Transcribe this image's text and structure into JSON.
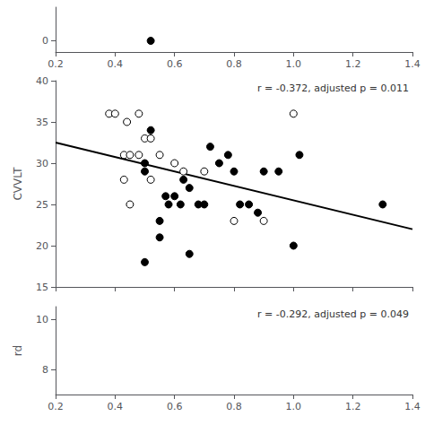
{
  "chart_data": [
    {
      "type": "scatter",
      "xlim": [
        0.2,
        1.4
      ],
      "xticks": [
        0.2,
        0.4,
        0.6,
        0.8,
        {
          "value": 1.0,
          "label": "1.0"
        },
        1.2,
        1.4
      ],
      "ylim": [
        -0.5,
        1.5
      ],
      "yticks": [
        0
      ],
      "series": [
        {
          "x": [
            0.52
          ],
          "values": [
            0.0
          ],
          "color": "#000000",
          "marker": "circle"
        }
      ]
    },
    {
      "type": "scatter",
      "ylabel": "CVVLT",
      "annotation": "r = -0.372, adjusted p = 0.011",
      "xlim": [
        0.2,
        1.4
      ],
      "xticks": [
        0.2,
        0.4,
        0.6,
        0.8,
        {
          "value": 1.0,
          "label": "1.0"
        },
        1.2,
        1.4
      ],
      "ylim": [
        15,
        40
      ],
      "yticks": [
        15,
        20,
        25,
        30,
        35,
        40
      ],
      "tick_labels": "y",
      "series": [
        {
          "x": [
            0.38,
            0.4,
            0.44,
            0.48,
            0.43,
            0.45,
            0.48,
            0.5,
            0.52,
            0.43,
            0.52,
            0.55,
            0.6,
            0.63,
            0.7,
            0.8,
            0.9,
            1.0,
            0.45
          ],
          "values": [
            36.0,
            36.0,
            35.0,
            36.0,
            31.0,
            31.0,
            31.0,
            33.0,
            33.0,
            28.0,
            28.0,
            31.0,
            30.0,
            29.0,
            29.0,
            23.0,
            23.0,
            36.0,
            25.0
          ],
          "color": "#ffffff",
          "marker": "circle"
        },
        {
          "x": [
            0.52,
            0.5,
            0.5,
            0.57,
            0.6,
            0.58,
            0.62,
            0.55,
            0.55,
            0.5,
            0.65,
            0.68,
            0.7,
            0.72,
            0.75,
            0.78,
            0.8,
            0.82,
            0.85,
            0.88,
            0.65,
            1.0,
            0.9,
            0.95,
            1.02,
            1.3,
            0.63
          ],
          "values": [
            34.0,
            30.0,
            29.0,
            26.0,
            26.0,
            25.0,
            25.0,
            23.0,
            21.0,
            18.0,
            27.0,
            25.0,
            25.0,
            32.0,
            30.0,
            31.0,
            29.0,
            25.0,
            25.0,
            24.0,
            19.0,
            20.0,
            29.0,
            29.0,
            31.0,
            25.0,
            28.0
          ],
          "color": "#000000",
          "marker": "circle"
        },
        {
          "type": "line",
          "x": [
            0.2,
            1.4
          ],
          "values": [
            32.5,
            22.0
          ],
          "color": "#000000",
          "line_style": "solid"
        }
      ]
    },
    {
      "type": "scatter",
      "ylabel": "rd",
      "annotation": "r = -0.292, adjusted p = 0.049",
      "xlim": [
        0.2,
        1.4
      ],
      "xticks": [
        0.2,
        0.4,
        0.6,
        0.8,
        {
          "value": 1.0,
          "label": "1.0"
        },
        1.2,
        1.4
      ],
      "ylim": [
        7.0,
        10.5
      ],
      "yticks": [
        8,
        10
      ],
      "series": []
    }
  ]
}
